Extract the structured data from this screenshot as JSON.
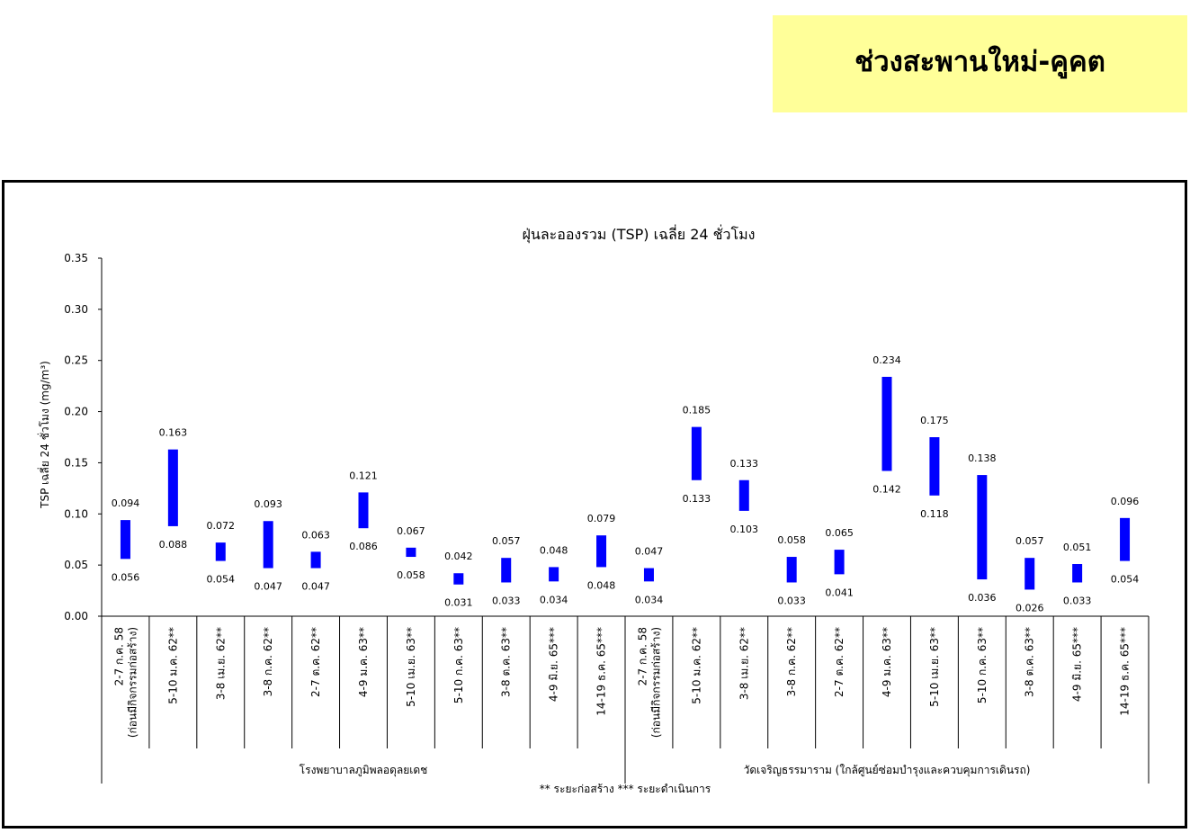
{
  "page_header": {
    "title": "ช่วงสะพานใหม่-คูคต"
  },
  "chart_data": {
    "type": "range-bar",
    "title": "ฝุ่นละอองรวม (TSP) เฉลี่ย 24 ชั่วโมง",
    "ylabel": "TSP เฉลี่ย 24 ชั่วโมง (mg/m³)",
    "ylim": [
      0,
      0.35
    ],
    "yticks": [
      "0.00",
      "0.05",
      "0.10",
      "0.15",
      "0.20",
      "0.25",
      "0.30",
      "0.35"
    ],
    "groups": [
      {
        "name": "โรงพยาบาลภูมิพลอดุลยเดช",
        "count": 11
      },
      {
        "name": "วัดเจริญธรรมาราม (ใกล้ศูนย์ซ่อมบำรุงและควบคุมการเดินรถ)",
        "count": 11
      }
    ],
    "categories": [
      {
        "line1": "2-7 ก.ค. 58",
        "line2": "(ก่อนมีกิจกรรมก่อสร้าง)"
      },
      {
        "line1": "5-10 ม.ค. 62**"
      },
      {
        "line1": "3-8 เม.ย. 62**"
      },
      {
        "line1": "3-8 ก.ค. 62**"
      },
      {
        "line1": "2-7 ต.ค. 62**"
      },
      {
        "line1": "4-9 ม.ค. 63**"
      },
      {
        "line1": "5-10 เม.ย. 63**"
      },
      {
        "line1": "5-10 ก.ค. 63**"
      },
      {
        "line1": "3-8 ต.ค. 63**"
      },
      {
        "line1": "4-9 มิ.ย. 65***"
      },
      {
        "line1": "14-19 ธ.ค. 65***"
      },
      {
        "line1": "2-7 ก.ค. 58",
        "line2": "(ก่อนมีกิจกรรมก่อสร้าง)"
      },
      {
        "line1": "5-10 ม.ค. 62**"
      },
      {
        "line1": "3-8 เม.ย. 62**"
      },
      {
        "line1": "3-8 ก.ค. 62**"
      },
      {
        "line1": "2-7 ต.ค. 62**"
      },
      {
        "line1": "4-9 ม.ค. 63**"
      },
      {
        "line1": "5-10 เม.ย. 63**"
      },
      {
        "line1": "5-10 ก.ค. 63**"
      },
      {
        "line1": "3-8 ต.ค. 63**"
      },
      {
        "line1": "4-9 มิ.ย. 65***"
      },
      {
        "line1": "14-19 ธ.ค. 65***"
      }
    ],
    "series": [
      {
        "max": [
          0.094,
          0.163,
          0.072,
          0.093,
          0.063,
          0.121,
          0.067,
          0.042,
          0.057,
          0.048,
          0.079,
          0.047,
          0.185,
          0.133,
          0.058,
          0.065,
          0.234,
          0.175,
          0.138,
          0.057,
          0.051,
          0.096
        ],
        "min": [
          0.056,
          0.088,
          0.054,
          0.047,
          0.047,
          0.086,
          0.058,
          0.031,
          0.033,
          0.034,
          0.048,
          0.034,
          0.133,
          0.103,
          0.033,
          0.041,
          0.142,
          0.118,
          0.036,
          0.026,
          0.033,
          0.054
        ],
        "max_labels": [
          "0.094",
          "0.163",
          "0.072",
          "0.093",
          "0.063",
          "0.121",
          "0.067",
          "0.042",
          "0.057",
          "0.048",
          "0.079",
          "0.047",
          "0.185",
          "0.133",
          "0.058",
          "0.065",
          "0.234",
          "0.175",
          "0.138",
          "0.057",
          "0.051",
          "0.096"
        ],
        "min_labels": [
          "0.056",
          "0.088",
          "0.054",
          "0.047",
          "0.047",
          "0.086",
          "0.058",
          "0.031",
          "0.033",
          "0.034",
          "0.048",
          "0.034",
          "0.133",
          "0.103",
          "0.033",
          "0.041",
          "0.142",
          "0.118",
          "0.036",
          "0.026",
          "0.033",
          "0.054"
        ],
        "color": "#0000ff"
      }
    ],
    "footnote": "** ระยะก่อสร้าง     *** ระยะดำเนินการ",
    "grid": false
  }
}
